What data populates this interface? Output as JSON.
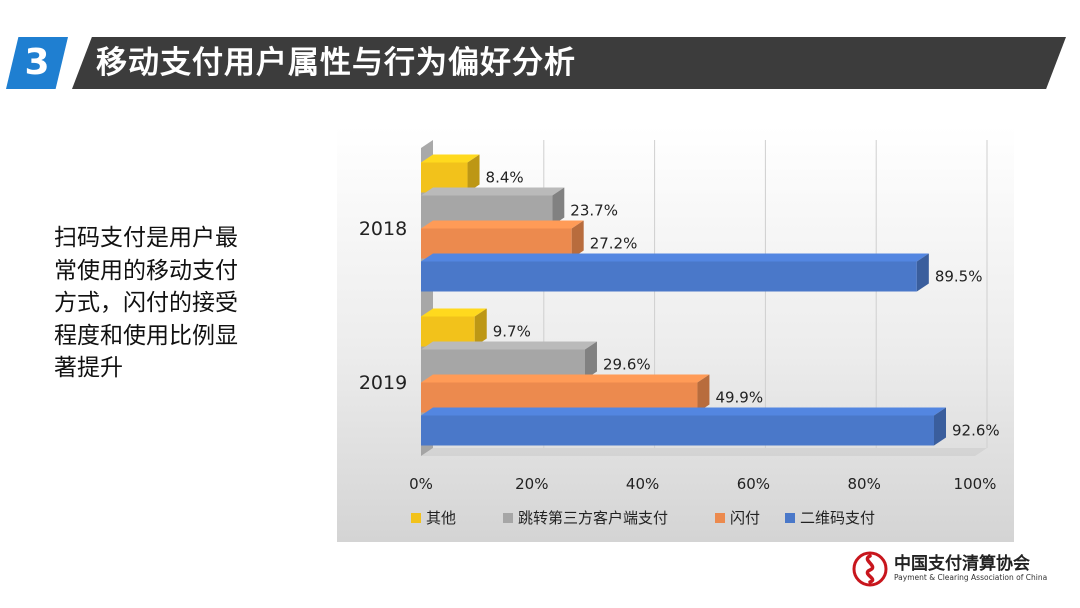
{
  "header": {
    "number": "3",
    "title": "移动支付用户属性与行为偏好分析"
  },
  "description": "扫码支付是用户最常使用的移动支付方式，闪付的接受程度和使用比例显著提升",
  "colors": {
    "blue": "#4a78c9",
    "orange": "#ec8a4e",
    "gray": "#a6a6a6",
    "yellow": "#f2c21b",
    "header_dark": "#3c3c3c",
    "header_blue": "#1f7fd1"
  },
  "chart_data": {
    "type": "bar",
    "orientation": "horizontal",
    "categories": [
      "2018",
      "2019"
    ],
    "series": [
      {
        "name": "其他",
        "values": [
          8.4,
          9.7
        ],
        "labels": [
          "8.4%",
          "9.7%"
        ],
        "color": "#f2c21b"
      },
      {
        "name": "跳转第三方客户端支付",
        "values": [
          23.7,
          29.6
        ],
        "labels": [
          "23.7%",
          "29.6%"
        ],
        "color": "#a6a6a6"
      },
      {
        "name": "闪付",
        "values": [
          27.2,
          49.9
        ],
        "labels": [
          "27.2%",
          "49.9%"
        ],
        "color": "#ec8a4e"
      },
      {
        "name": "二维码支付",
        "values": [
          89.5,
          92.6
        ],
        "labels": [
          "89.5%",
          "92.6%"
        ],
        "color": "#4a78c9"
      }
    ],
    "xlim": [
      0,
      100
    ],
    "xticks": [
      "0%",
      "20%",
      "40%",
      "60%",
      "80%",
      "100%"
    ],
    "grid": true,
    "legend": "bottom"
  },
  "logo": {
    "name_cn": "中国支付清算协会",
    "name_en": "Payment & Clearing Association of China"
  }
}
